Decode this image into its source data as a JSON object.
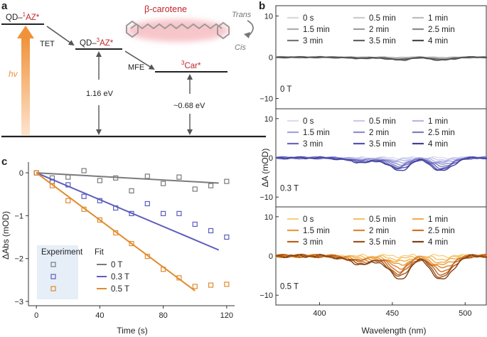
{
  "panels": {
    "a": "a",
    "b": "b",
    "c": "c"
  },
  "diagram": {
    "level_qd_1az": {
      "prefix": "QD–",
      "sup": "1",
      "name": "AZ*"
    },
    "level_qd_3az": {
      "prefix": "QD–",
      "sup": "3",
      "name": "AZ*"
    },
    "level_3car": {
      "sup": "3",
      "name": "Car*"
    },
    "tet": "TET",
    "mfe": "MFE",
    "hv": "hv",
    "energy_1": "1.16 eV",
    "energy_2": "~0.68 eV",
    "beta_carotene": "β-carotene",
    "trans": "Trans",
    "cis": "Cis",
    "colors": {
      "orange": "#f0923a",
      "red": "#c0262d",
      "arrow": "#555555"
    }
  },
  "chart_data": [
    {
      "type": "line",
      "id": "b",
      "xlabel": "Wavelength (nm)",
      "ylabel": "ΔA (mOD)",
      "xlim": [
        370,
        515
      ],
      "xticks": [
        400,
        450,
        500
      ],
      "yticks": [
        -10,
        0,
        10
      ],
      "ylim": [
        -12.5,
        12.5
      ],
      "times": [
        "0 s",
        "0.5 min",
        "1 min",
        "1.5 min",
        "2 min",
        "2.5 min",
        "3 min",
        "3.5 min",
        "4 min"
      ],
      "subpanels": [
        {
          "field": "0 T",
          "colors": [
            "#d8d8d8",
            "#cbcbcb",
            "#bdbdbd",
            "#aeaeae",
            "#9d9d9d",
            "#8a8a8a",
            "#767676",
            "#616161",
            "#4a4a4a"
          ],
          "amp": 0.12
        },
        {
          "field": "0.3 T",
          "colors": [
            "#dcdcf3",
            "#c9c9ec",
            "#b6b6e4",
            "#a3a3db",
            "#8f8fd1",
            "#7c7cc7",
            "#6868bc",
            "#5353ae",
            "#3f3f9c"
          ],
          "amp": 0.55
        },
        {
          "field": "0.5 T",
          "colors": [
            "#f7d17e",
            "#f4c265",
            "#f0ad4e",
            "#e9993c",
            "#de852e",
            "#cf7224",
            "#bb6020",
            "#9f511b",
            "#7d4116"
          ],
          "amp": 1.0
        }
      ]
    },
    {
      "type": "scatter",
      "id": "c",
      "xlabel": "Time (s)",
      "ylabel": "ΔAbs (mOD)",
      "xlim": [
        -5,
        125
      ],
      "ylim": [
        -3.1,
        0.25
      ],
      "xticks": [
        0,
        40,
        80,
        120
      ],
      "yticks": [
        0,
        -1,
        -2,
        -3
      ],
      "legend_title_experiment": "Experiment",
      "legend_title_fit": "Fit",
      "series": [
        {
          "name": "0 T",
          "color": "#7a7a7a",
          "x": [
            0,
            10,
            20,
            30,
            40,
            50,
            60,
            70,
            80,
            90,
            100,
            110,
            120
          ],
          "y": [
            0,
            -0.12,
            -0.1,
            0.05,
            -0.18,
            -0.12,
            -0.42,
            -0.08,
            -0.25,
            -0.1,
            -0.38,
            -0.3,
            -0.2
          ],
          "fit": [
            [
              0,
              0
            ],
            [
              115,
              -0.24
            ]
          ]
        },
        {
          "name": "0.3 T",
          "color": "#5c5cbd",
          "x": [
            0,
            10,
            20,
            30,
            40,
            50,
            60,
            70,
            80,
            90,
            100,
            110,
            120
          ],
          "y": [
            0,
            -0.2,
            -0.28,
            -0.55,
            -0.65,
            -0.82,
            -0.95,
            -0.72,
            -0.95,
            -0.95,
            -1.2,
            -1.35,
            -1.5
          ],
          "fit": [
            [
              0,
              0
            ],
            [
              115,
              -1.8
            ]
          ]
        },
        {
          "name": "0.5 T",
          "color": "#e08b2c",
          "x": [
            0,
            10,
            20,
            30,
            40,
            50,
            60,
            70,
            80,
            90,
            100,
            110,
            120
          ],
          "y": [
            0,
            -0.3,
            -0.65,
            -0.85,
            -1.1,
            -1.4,
            -1.65,
            -1.95,
            -2.25,
            -2.45,
            -2.65,
            -2.62,
            -2.6
          ],
          "fit": [
            [
              0,
              0
            ],
            [
              100,
              -2.75
            ]
          ]
        }
      ]
    }
  ]
}
